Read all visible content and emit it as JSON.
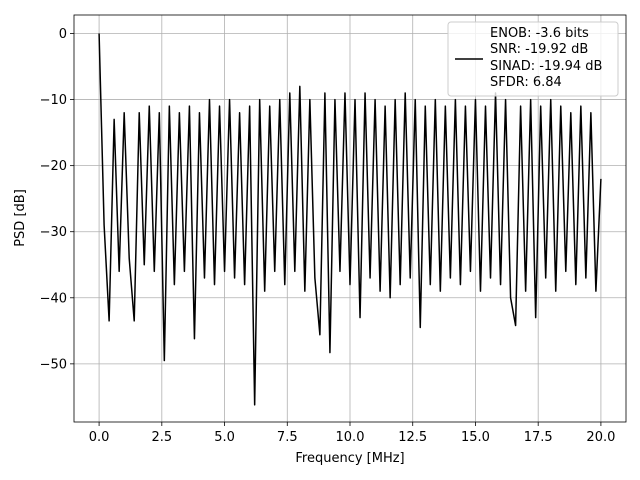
{
  "chart_data": {
    "type": "line",
    "xlabel": "Frequency [MHz]",
    "ylabel": "PSD [dB]",
    "x": [
      0,
      0.2,
      0.4,
      0.6,
      0.8,
      1.0,
      1.2,
      1.4,
      1.6,
      1.8,
      2.0,
      2.2,
      2.4,
      2.6,
      2.8,
      3.0,
      3.2,
      3.4,
      3.6,
      3.8,
      4.0,
      4.2,
      4.4,
      4.6,
      4.8,
      5.0,
      5.2,
      5.4,
      5.6,
      5.8,
      6.0,
      6.2,
      6.4,
      6.6,
      6.8,
      7.0,
      7.2,
      7.4,
      7.6,
      7.8,
      8.0,
      8.2,
      8.4,
      8.6,
      8.8,
      9.0,
      9.2,
      9.4,
      9.6,
      9.8,
      10.0,
      10.2,
      10.4,
      10.6,
      10.8,
      11.0,
      11.2,
      11.4,
      11.6,
      11.8,
      12.0,
      12.2,
      12.4,
      12.6,
      12.8,
      13.0,
      13.2,
      13.4,
      13.6,
      13.8,
      14.0,
      14.2,
      14.4,
      14.6,
      14.8,
      15.0,
      15.2,
      15.4,
      15.6,
      15.8,
      16.0,
      16.2,
      16.4,
      16.6,
      16.8,
      17.0,
      17.2,
      17.4,
      17.6,
      17.8,
      18.0,
      18.2,
      18.4,
      18.6,
      18.8,
      19.0,
      19.2,
      19.4,
      19.6,
      19.8,
      20.0
    ],
    "series": [
      {
        "name": "ENOB: -3.6 bits\nSNR: -19.92 dB\nSINAD: -19.94 dB\nSFDR: 6.84",
        "color": "#000000",
        "values": [
          0,
          -29,
          -43.5,
          -13,
          -36,
          -12,
          -34,
          -43.5,
          -12,
          -35,
          -11,
          -36,
          -12,
          -49.5,
          -11,
          -38,
          -12,
          -36,
          -11,
          -46.2,
          -12,
          -37,
          -10,
          -38,
          -11,
          -36,
          -10,
          -37,
          -12,
          -38,
          -11,
          -56.2,
          -10,
          -39,
          -11,
          -36,
          -10,
          -38,
          -9,
          -36,
          -8,
          -39,
          -10,
          -37,
          -45.6,
          -9,
          -48.3,
          -10,
          -36,
          -9,
          -38,
          -10,
          -43,
          -9,
          -37,
          -10,
          -39,
          -11,
          -40,
          -10,
          -38,
          -9,
          -37,
          -10,
          -44.5,
          -11,
          -38,
          -10,
          -39,
          -11,
          -37,
          -10,
          -38,
          -11,
          -36,
          -10,
          -39,
          -11,
          -37,
          -9,
          -38,
          -10,
          -40,
          -44.2,
          -11,
          -39,
          -10,
          -43,
          -11,
          -37,
          -10,
          -39,
          -11,
          -36,
          -12,
          -38,
          -11,
          -37,
          -12,
          -39,
          -22
        ]
      }
    ],
    "xlim": [
      -1,
      21
    ],
    "xticks": [
      {
        "value": 0,
        "label": "0.0"
      },
      {
        "value": 2.5,
        "label": "2.5"
      },
      {
        "value": 5,
        "label": "5.0"
      },
      {
        "value": 7.5,
        "label": "7.5"
      },
      {
        "value": 10,
        "label": "10.0"
      },
      {
        "value": 12.5,
        "label": "12.5"
      },
      {
        "value": 15,
        "label": "15.0"
      },
      {
        "value": 17.5,
        "label": "17.5"
      },
      {
        "value": 20,
        "label": "20.0"
      }
    ],
    "ylim": [
      -58.8,
      2.8
    ],
    "yticks": [
      {
        "value": -50,
        "label": "−50"
      },
      {
        "value": -40,
        "label": "−40"
      },
      {
        "value": -30,
        "label": "−30"
      },
      {
        "value": -20,
        "label": "−20"
      },
      {
        "value": -10,
        "label": "−10"
      },
      0
    ],
    "grid": true,
    "legend": "upper right"
  }
}
